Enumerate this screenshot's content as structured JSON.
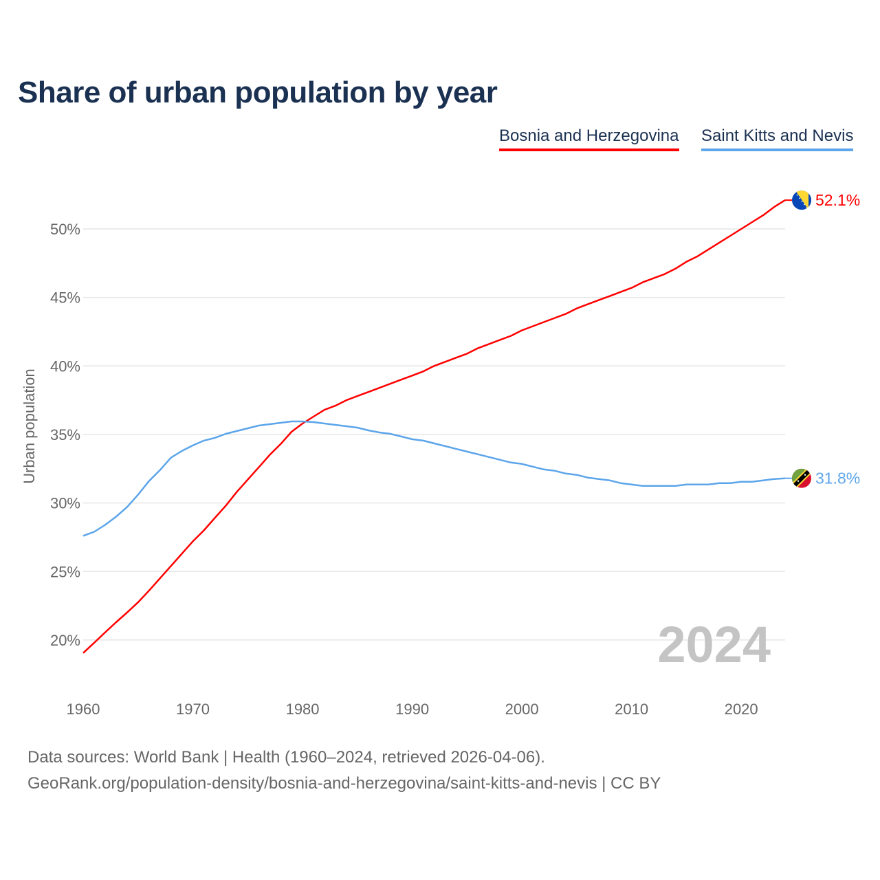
{
  "chart_data": {
    "type": "line",
    "title": "Share of urban population by year",
    "xlabel": "",
    "ylabel": "Urban population",
    "xlim": [
      1960,
      2024
    ],
    "ylim": [
      17,
      53
    ],
    "x_ticks": [
      "1960",
      "1970",
      "1980",
      "1990",
      "2000",
      "2010",
      "2020"
    ],
    "y_ticks": [
      {
        "v": 20,
        "label": "20%"
      },
      {
        "v": 25,
        "label": "25%"
      },
      {
        "v": 30,
        "label": "30%"
      },
      {
        "v": 35,
        "label": "35%"
      },
      {
        "v": 40,
        "label": "40%"
      },
      {
        "v": 45,
        "label": "45%"
      },
      {
        "v": 50,
        "label": "50%"
      }
    ],
    "grid": true,
    "legend_position": "top-right",
    "year_label": "2024",
    "x": [
      1960,
      1961,
      1962,
      1963,
      1964,
      1965,
      1966,
      1967,
      1968,
      1969,
      1970,
      1971,
      1972,
      1973,
      1974,
      1975,
      1976,
      1977,
      1978,
      1979,
      1980,
      1981,
      1982,
      1983,
      1984,
      1985,
      1986,
      1987,
      1988,
      1989,
      1990,
      1991,
      1992,
      1993,
      1994,
      1995,
      1996,
      1997,
      1998,
      1999,
      2000,
      2001,
      2002,
      2003,
      2004,
      2005,
      2006,
      2007,
      2008,
      2009,
      2010,
      2011,
      2012,
      2013,
      2014,
      2015,
      2016,
      2017,
      2018,
      2019,
      2020,
      2021,
      2022,
      2023,
      2024
    ],
    "series": [
      {
        "name": "Bosnia and Herzegovina",
        "color": "#ff0000",
        "end_label": "52.1%",
        "flag": "bosnia-flag",
        "values": [
          19.05,
          19.8,
          20.55,
          21.3,
          22.0,
          22.75,
          23.6,
          24.5,
          25.4,
          26.3,
          27.2,
          28.0,
          28.9,
          29.8,
          30.8,
          31.7,
          32.6,
          33.5,
          34.3,
          35.2,
          35.8,
          36.3,
          36.8,
          37.1,
          37.5,
          37.8,
          38.1,
          38.4,
          38.7,
          39.0,
          39.3,
          39.6,
          40.0,
          40.3,
          40.6,
          40.9,
          41.3,
          41.6,
          41.9,
          42.2,
          42.6,
          42.9,
          43.2,
          43.5,
          43.8,
          44.2,
          44.5,
          44.8,
          45.1,
          45.4,
          45.7,
          46.1,
          46.4,
          46.7,
          47.1,
          47.6,
          48.0,
          48.5,
          49.0,
          49.5,
          50.0,
          50.5,
          51.0,
          51.6,
          52.1
        ]
      },
      {
        "name": "Saint Kitts and Nevis",
        "color": "#5ca5ea",
        "end_label": "31.8%",
        "flag": "saint-kitts-flag",
        "values": [
          27.6,
          27.9,
          28.4,
          29.0,
          29.7,
          30.6,
          31.6,
          32.4,
          33.3,
          33.8,
          34.2,
          34.55,
          34.75,
          35.05,
          35.25,
          35.45,
          35.65,
          35.75,
          35.85,
          35.95,
          35.95,
          35.9,
          35.8,
          35.7,
          35.6,
          35.5,
          35.3,
          35.15,
          35.05,
          34.85,
          34.65,
          34.55,
          34.35,
          34.15,
          33.95,
          33.75,
          33.55,
          33.35,
          33.15,
          32.95,
          32.85,
          32.65,
          32.45,
          32.35,
          32.15,
          32.05,
          31.85,
          31.75,
          31.65,
          31.45,
          31.35,
          31.25,
          31.25,
          31.25,
          31.25,
          31.35,
          31.35,
          31.35,
          31.45,
          31.45,
          31.55,
          31.55,
          31.65,
          31.75,
          31.8
        ]
      }
    ]
  },
  "footer": {
    "line1": "Data sources: World Bank | Health (1960–2024, retrieved 2026-04-06).",
    "line2": "GeoRank.org/population-density/bosnia-and-herzegovina/saint-kitts-and-nevis | CC BY"
  }
}
